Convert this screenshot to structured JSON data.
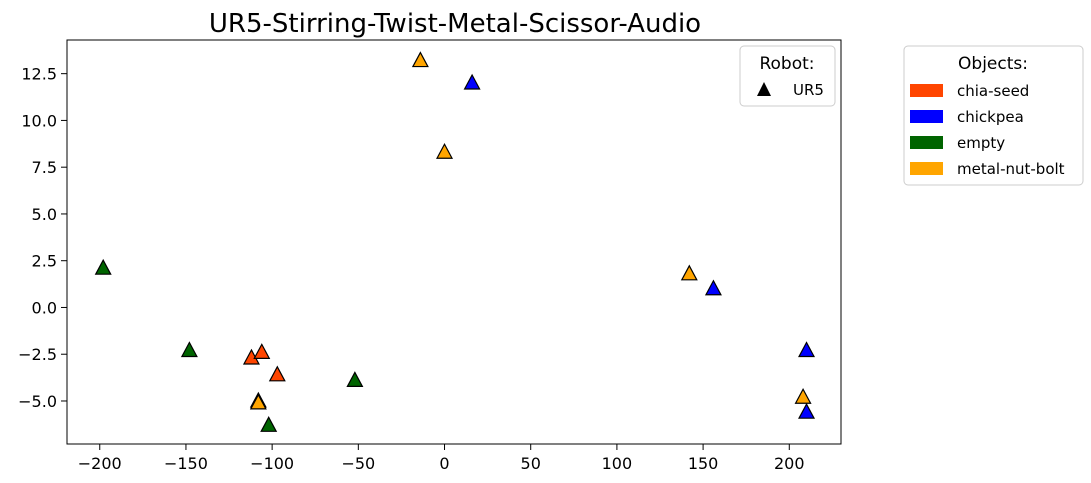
{
  "chart_data": {
    "type": "scatter",
    "title": "UR5-Stirring-Twist-Metal-Scissor-Audio",
    "xlabel": "",
    "ylabel": "",
    "xlim": [
      -219,
      230
    ],
    "ylim": [
      -7.3,
      14.3
    ],
    "xticks": [
      -200,
      -150,
      -100,
      -50,
      0,
      50,
      100,
      150,
      200
    ],
    "yticks": [
      -5.0,
      -2.5,
      0.0,
      2.5,
      5.0,
      7.5,
      10.0,
      12.5
    ],
    "ytick_labels": [
      "−5.0",
      "−2.5",
      "0.0",
      "2.5",
      "5.0",
      "7.5",
      "10.0",
      "12.5"
    ],
    "xtick_labels": [
      "−200",
      "−150",
      "−100",
      "−50",
      "0",
      "50",
      "100",
      "150",
      "200"
    ],
    "grid": false,
    "marker": "triangle",
    "robot_legend": {
      "title": "Robot:",
      "placement": "top-right",
      "entries": [
        {
          "label": "UR5",
          "marker": "triangle",
          "color": "#000000"
        }
      ]
    },
    "object_legend": {
      "title": "Objects:",
      "placement": "outside-right",
      "entries": [
        {
          "label": "chia-seed",
          "color": "#FF4500"
        },
        {
          "label": "chickpea",
          "color": "#0000FF"
        },
        {
          "label": "empty",
          "color": "#006400"
        },
        {
          "label": "metal-nut-bolt",
          "color": "#FFA500"
        }
      ]
    },
    "series": [
      {
        "name": "chia-seed",
        "color": "#FF4500",
        "points": [
          [
            -112,
            -2.7
          ],
          [
            -106,
            -2.4
          ],
          [
            -97,
            -3.6
          ]
        ]
      },
      {
        "name": "chickpea",
        "color": "#0000FF",
        "points": [
          [
            16,
            12.0
          ],
          [
            156,
            1.0
          ],
          [
            210,
            -2.3
          ],
          [
            210,
            -5.6
          ]
        ]
      },
      {
        "name": "empty",
        "color": "#006400",
        "points": [
          [
            -198,
            2.1
          ],
          [
            -148,
            -2.3
          ],
          [
            -52,
            -3.9
          ],
          [
            -102,
            -6.3
          ]
        ]
      },
      {
        "name": "metal-nut-bolt",
        "color": "#FFA500",
        "points": [
          [
            -14,
            13.2
          ],
          [
            0,
            8.3
          ],
          [
            142,
            1.8
          ],
          [
            208,
            -4.8
          ],
          [
            -108,
            -5.0
          ],
          [
            -108,
            -5.1
          ]
        ]
      }
    ]
  }
}
